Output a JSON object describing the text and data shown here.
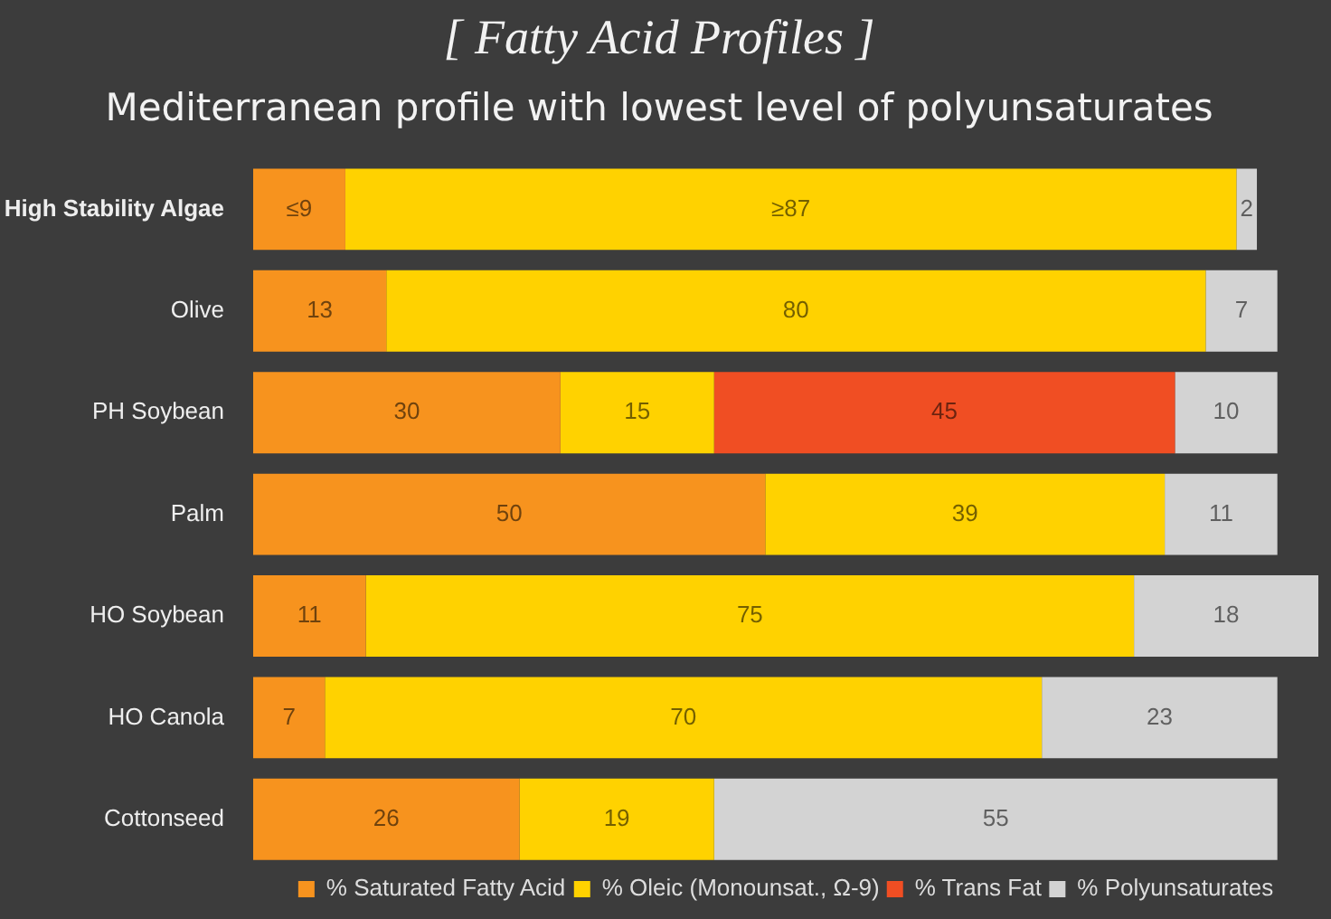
{
  "chart_data": {
    "type": "bar",
    "orientation": "horizontal",
    "stacked": true,
    "title": "[ Fatty Acid Profiles ]",
    "subtitle": "Mediterranean profile with lowest level of polyunsaturates",
    "categories": [
      "High Stability Algae",
      "Olive",
      "PH Soybean",
      "Palm",
      "HO Soybean",
      "HO Canola",
      "Cottonseed"
    ],
    "series": [
      {
        "name": "% Saturated Fatty Acid",
        "color": "#f7931e",
        "values": [
          9,
          13,
          30,
          50,
          11,
          7,
          26
        ],
        "value_labels": [
          "≤9",
          "13",
          "30",
          "50",
          "11",
          "7",
          "26"
        ]
      },
      {
        "name": "% Oleic (Monounsat., Ω-9)",
        "color": "#ffd200",
        "values": [
          87,
          80,
          15,
          39,
          75,
          70,
          19
        ],
        "value_labels": [
          "≥87",
          "80",
          "15",
          "39",
          "75",
          "70",
          "19"
        ]
      },
      {
        "name": "% Trans Fat",
        "color": "#f04e23",
        "values": [
          null,
          null,
          45,
          null,
          null,
          null,
          null
        ],
        "value_labels": [
          null,
          null,
          "45",
          null,
          null,
          null,
          null
        ]
      },
      {
        "name": "% Polyunsaturates",
        "color": "#d3d3d3",
        "values": [
          2,
          7,
          10,
          11,
          18,
          23,
          55
        ],
        "value_labels": [
          "2",
          "7",
          "10",
          "11",
          "18",
          "23",
          "55"
        ]
      }
    ],
    "xlim": [
      0,
      104
    ],
    "tick_labels": "y",
    "grid": false,
    "legend": "bottom"
  }
}
